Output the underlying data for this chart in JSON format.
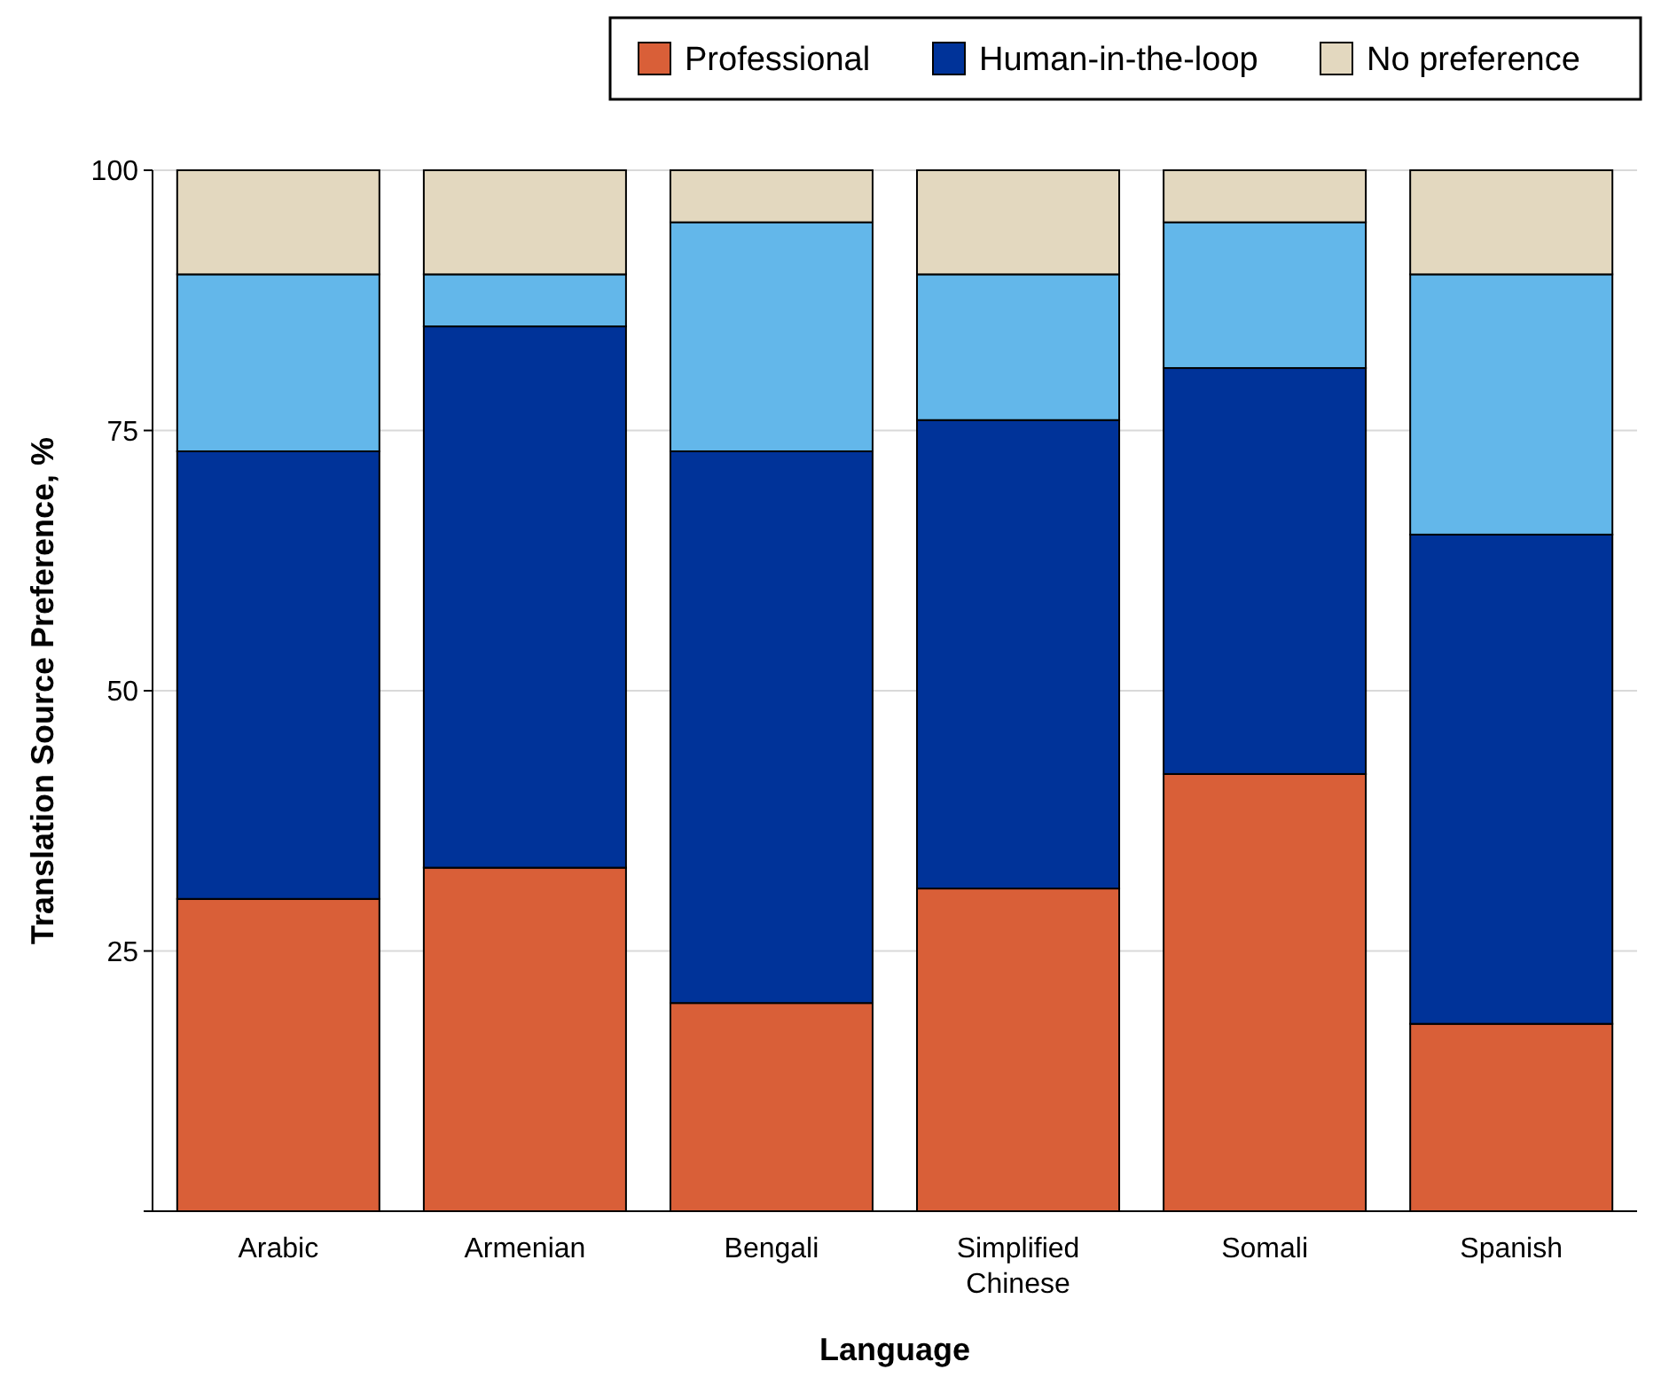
{
  "chart_data": {
    "type": "bar",
    "stacked": true,
    "xlabel": "Language",
    "ylabel": "Translation Source Preference, %",
    "categories": [
      "Arabic",
      "Armenian",
      "Bengali",
      "Simplified Chinese",
      "Somali",
      "Spanish"
    ],
    "series": [
      {
        "name": "Professional",
        "color": "#d95f38",
        "values": [
          30,
          33,
          20,
          31,
          42,
          18
        ]
      },
      {
        "name": "Human-in-the-loop",
        "color": "#003399",
        "values": [
          43,
          52,
          53,
          45,
          39,
          47
        ]
      },
      {
        "color": "#63b7ea",
        "values": [
          17,
          5,
          22,
          14,
          14,
          25
        ]
      },
      {
        "name": "No preference",
        "color": "#e3d8bf",
        "values": [
          10,
          10,
          5,
          10,
          5,
          10
        ]
      }
    ],
    "ylim": [
      0,
      100
    ],
    "yticks": [
      {
        "value": 0,
        "label": null
      },
      25,
      50,
      75,
      100
    ],
    "grid": "y",
    "legend": "top"
  }
}
